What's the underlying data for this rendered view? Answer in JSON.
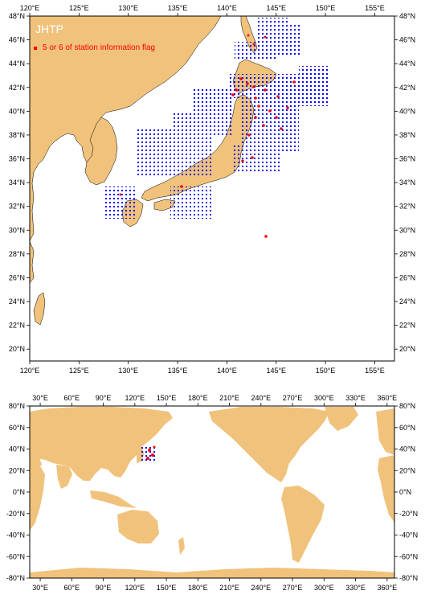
{
  "top_map": {
    "title": "JHTP",
    "legend_label": "5 or 6 of station information flag",
    "lon_ticks": [
      "120°E",
      "125°E",
      "130°E",
      "135°E",
      "140°E",
      "145°E",
      "150°E",
      "155°E"
    ],
    "lat_ticks": [
      "48°N",
      "46°N",
      "44°N",
      "42°N",
      "40°N",
      "38°N",
      "36°N",
      "34°N",
      "32°N",
      "30°N",
      "28°N",
      "26°N",
      "24°N",
      "22°N",
      "20°N"
    ],
    "lon_range": [
      120,
      157
    ],
    "lat_range": [
      19,
      48
    ]
  },
  "bottom_map": {
    "lon_ticks": [
      "30°E",
      "60°E",
      "90°E",
      "120°E",
      "150°E",
      "180°E",
      "210°E",
      "240°E",
      "270°E",
      "300°E",
      "330°E",
      "360°E"
    ],
    "lat_ticks": [
      "80°N",
      "60°N",
      "40°N",
      "20°N",
      "0°N",
      "-20°N",
      "-40°N",
      "-60°N",
      "-80°N"
    ],
    "lon_range": [
      20,
      367
    ],
    "lat_range": [
      -80,
      80
    ]
  },
  "colors": {
    "land": "#f0c27b",
    "ocean": "#ffffff",
    "station": "#0000ff",
    "flagged": "#ff0000"
  }
}
